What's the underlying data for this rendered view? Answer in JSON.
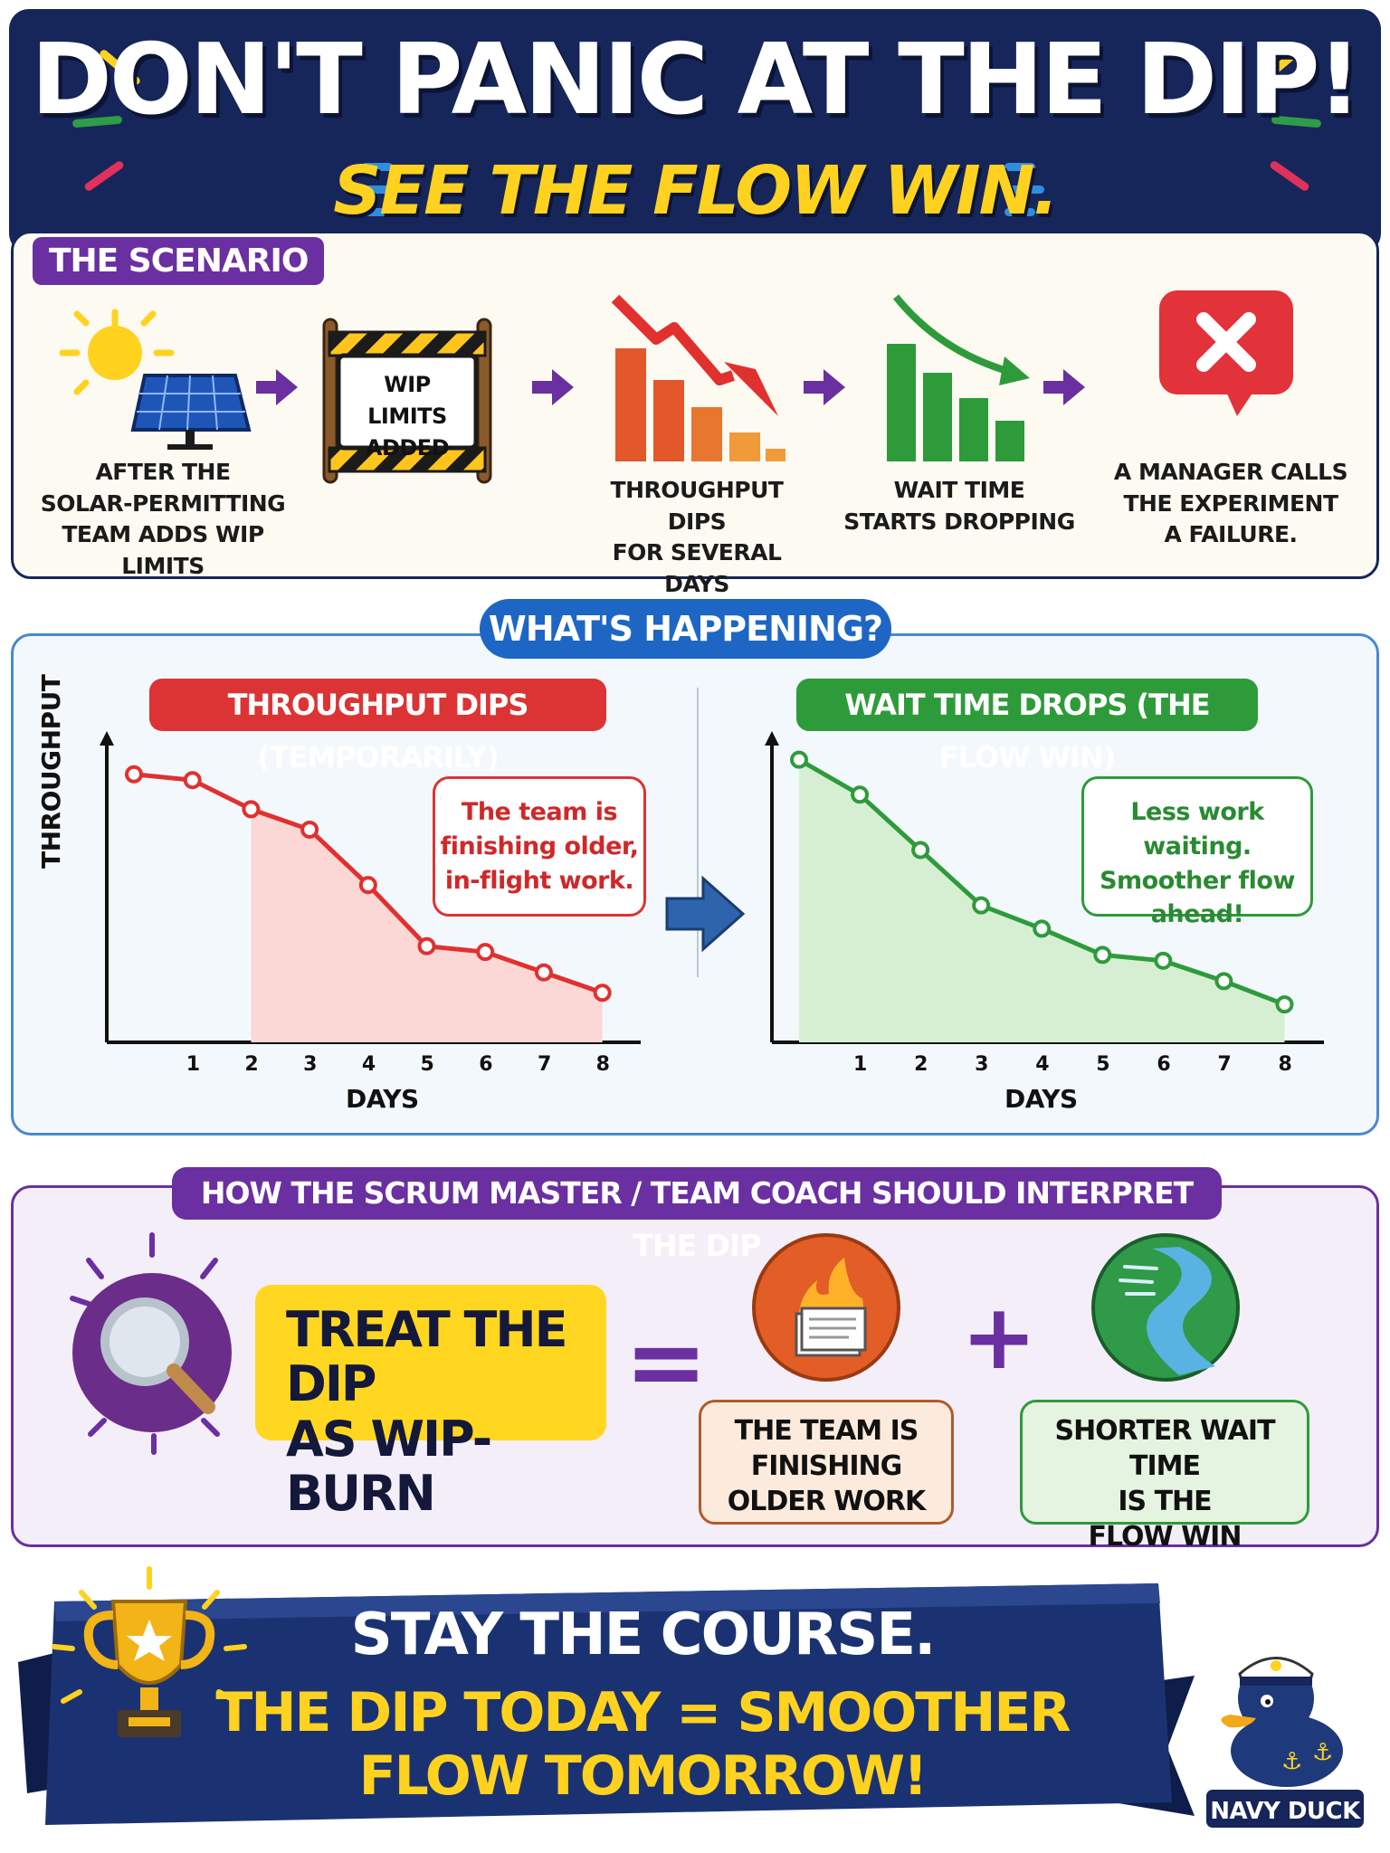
{
  "header": {
    "title": "DON'T PANIC AT THE DIP!",
    "subtitle": "SEE THE FLOW WIN."
  },
  "scenario": {
    "tag": "THE SCENARIO",
    "steps": [
      {
        "icon": "solar-panel-icon",
        "caption_lines": [
          "AFTER THE",
          "SOLAR-PERMITTING",
          "TEAM ADDS WIP LIMITS"
        ]
      },
      {
        "icon": "construction-sign-icon",
        "sign_lines": [
          "WIP LIMITS",
          "ADDED"
        ]
      },
      {
        "icon": "declining-bars-icon",
        "caption_lines": [
          "THROUGHPUT DIPS",
          "FOR SEVERAL DAYS"
        ]
      },
      {
        "icon": "green-bars-icon",
        "caption_lines": [
          "WAIT TIME",
          "STARTS DROPPING"
        ]
      },
      {
        "icon": "x-speech-bubble-icon",
        "caption_lines": [
          "A MANAGER CALLS",
          "THE EXPERIMENT",
          "A FAILURE."
        ]
      }
    ]
  },
  "whats_happening": {
    "tag": "WHAT'S HAPPENING?",
    "left_chart": {
      "tag": "THROUGHPUT DIPS (TEMPORARILY)",
      "ylabel": "THROUGHPUT",
      "xlabel": "DAYS",
      "ticks": [
        "1",
        "2",
        "3",
        "4",
        "5",
        "6",
        "7",
        "8"
      ],
      "note_lines": [
        "The team is",
        "finishing older,",
        "in-flight work."
      ],
      "color": "#e0312f"
    },
    "right_chart": {
      "tag": "WAIT TIME DROPS (THE FLOW WIN)",
      "xlabel": "DAYS",
      "ticks": [
        "1",
        "2",
        "3",
        "4",
        "5",
        "6",
        "7",
        "8"
      ],
      "note_lines": [
        "Less work waiting.",
        "Smoother flow",
        "ahead!"
      ],
      "color": "#2e9b3a"
    }
  },
  "chart_data": [
    {
      "type": "line",
      "title": "THROUGHPUT DIPS (TEMPORARILY)",
      "xlabel": "DAYS",
      "ylabel": "THROUGHPUT",
      "x": [
        0,
        1,
        2,
        3,
        4,
        5,
        6,
        7,
        8
      ],
      "values": [
        92,
        90,
        80,
        73,
        54,
        33,
        31,
        24,
        17
      ],
      "ylim": [
        0,
        100
      ],
      "grid": false
    },
    {
      "type": "line",
      "title": "WAIT TIME DROPS (THE FLOW WIN)",
      "xlabel": "DAYS",
      "ylabel": "",
      "x": [
        0,
        1,
        2,
        3,
        4,
        5,
        6,
        7,
        8
      ],
      "values": [
        97,
        85,
        66,
        47,
        39,
        30,
        28,
        21,
        13
      ],
      "ylim": [
        0,
        100
      ],
      "grid": false
    }
  ],
  "interpret": {
    "tag": "HOW THE SCRUM MASTER / TEAM COACH SHOULD INTERPRET THE DIP",
    "treat_lines": [
      "TREAT THE DIP",
      "AS WIP-BURN"
    ],
    "equals": "=",
    "plus": "+",
    "result_left_lines": [
      "THE TEAM IS",
      "FINISHING",
      "OLDER WORK"
    ],
    "result_right_lines": [
      "SHORTER WAIT TIME",
      "IS THE",
      "FLOW WIN"
    ]
  },
  "footer": {
    "line1": "STAY THE COURSE.",
    "line2": "THE DIP TODAY = SMOOTHER FLOW TOMORROW!",
    "brand": "NAVY DUCK"
  }
}
